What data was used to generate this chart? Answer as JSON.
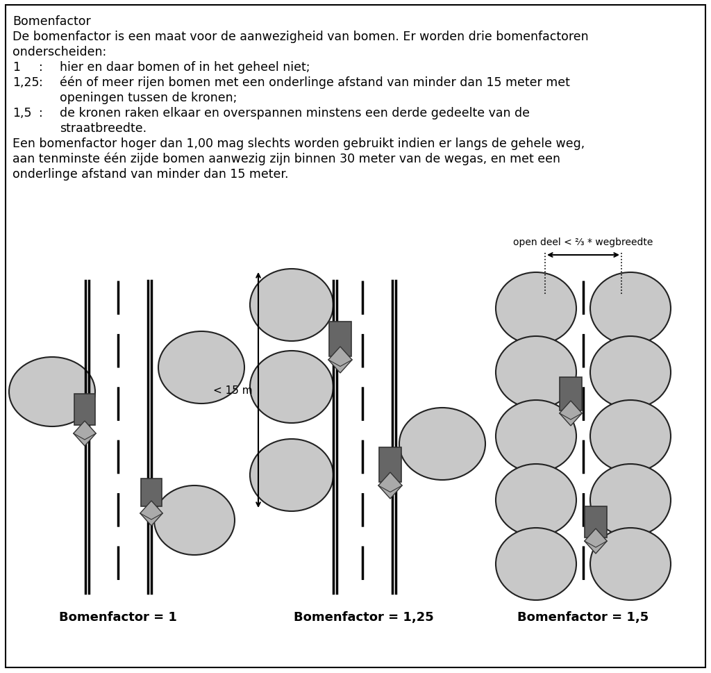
{
  "title_line": "Bomenfactor",
  "labels": [
    "Bomenfactor = 1",
    "Bomenfactor = 1,25",
    "Bomenfactor = 1,5"
  ],
  "annotation_text": "open deel < ⅔ * wegbreedte",
  "distance_label": "< 15 m",
  "tree_color": "#c8c8c8",
  "tree_edge_color": "#222222",
  "trunk_color": "#888888",
  "trunk_dark": "#666666",
  "bg_color": "#ffffff",
  "text_color": "#000000"
}
